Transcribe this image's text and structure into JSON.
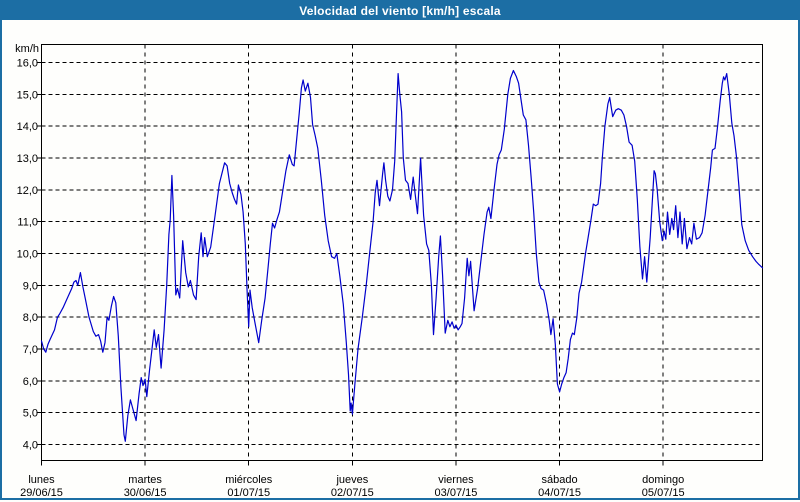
{
  "window": {
    "title": "Velocidad del viento [km/h] escala"
  },
  "colors": {
    "titlebar_bg": "#1C6EA4",
    "titlebar_text": "#FFFFFF",
    "window_border": "#1C6EA4",
    "plot_bg": "#FEFEFC",
    "grid": "#000000",
    "text": "#000000",
    "line": "#0000CC"
  },
  "chart_data": {
    "type": "line",
    "title": "Velocidad del viento [km/h] escala",
    "legend": "none",
    "grid": "dashed",
    "y_axis": {
      "unit_label": "km/h",
      "tick_values": [
        16,
        15,
        14,
        13,
        12,
        11,
        10,
        9,
        8,
        7,
        6,
        5,
        4
      ],
      "tick_labels": [
        "16,0",
        "15,0",
        "14,0",
        "13,0",
        "12,0",
        "11,0",
        "10,0",
        "9,0",
        "8,0",
        "7,0",
        "6,0",
        "5,0",
        "4,0"
      ],
      "range_shown": [
        4,
        16
      ]
    },
    "x_axis": {
      "days": [
        {
          "name": "lunes",
          "date": "29/06/15"
        },
        {
          "name": "martes",
          "date": "30/06/15"
        },
        {
          "name": "miércoles",
          "date": "01/07/15"
        },
        {
          "name": "jueves",
          "date": "02/07/15"
        },
        {
          "name": "viernes",
          "date": "03/07/15"
        },
        {
          "name": "sábado",
          "date": "04/07/15"
        },
        {
          "name": "domingo",
          "date": "05/07/15"
        }
      ],
      "hours_per_day": 24,
      "hours_shown": 167
    },
    "series": [
      {
        "name": "Velocidad del viento",
        "unit": "km/h",
        "color": "#0000CC",
        "points": [
          [
            0,
            7.25
          ],
          [
            0.5,
            7.0
          ],
          [
            1,
            6.9
          ],
          [
            1.5,
            7.15
          ],
          [
            2,
            7.3
          ],
          [
            3,
            7.6
          ],
          [
            3.7,
            8.0
          ],
          [
            4.2,
            8.1
          ],
          [
            5,
            8.3
          ],
          [
            6,
            8.6
          ],
          [
            7,
            8.9
          ],
          [
            7.5,
            9.1
          ],
          [
            8,
            9.15
          ],
          [
            8.4,
            9.0
          ],
          [
            9,
            9.4
          ],
          [
            9.6,
            8.95
          ],
          [
            10.2,
            8.55
          ],
          [
            11,
            8.0
          ],
          [
            12,
            7.55
          ],
          [
            12.6,
            7.4
          ],
          [
            13.2,
            7.45
          ],
          [
            13.7,
            7.25
          ],
          [
            14.2,
            6.9
          ],
          [
            14.7,
            7.2
          ],
          [
            15.2,
            8.0
          ],
          [
            15.6,
            7.9
          ],
          [
            16.2,
            8.35
          ],
          [
            16.7,
            8.65
          ],
          [
            17.2,
            8.45
          ],
          [
            17.8,
            7.4
          ],
          [
            18.4,
            5.8
          ],
          [
            19.1,
            4.3
          ],
          [
            19.4,
            4.1
          ],
          [
            20,
            4.9
          ],
          [
            20.6,
            5.4
          ],
          [
            21.2,
            5.1
          ],
          [
            21.9,
            4.75
          ],
          [
            22.6,
            5.6
          ],
          [
            23.1,
            6.1
          ],
          [
            23.5,
            5.85
          ],
          [
            24,
            6.05
          ],
          [
            24.4,
            5.5
          ],
          [
            25,
            6.3
          ],
          [
            25.6,
            7.0
          ],
          [
            26.1,
            7.6
          ],
          [
            26.6,
            7.05
          ],
          [
            27.1,
            7.45
          ],
          [
            27.7,
            6.4
          ],
          [
            28.4,
            7.6
          ],
          [
            29,
            9.0
          ],
          [
            29.5,
            10.6
          ],
          [
            29.8,
            11.05
          ],
          [
            30.2,
            12.45
          ],
          [
            30.6,
            11.2
          ],
          [
            31.1,
            8.7
          ],
          [
            31.5,
            8.9
          ],
          [
            32,
            8.6
          ],
          [
            32.7,
            10.4
          ],
          [
            33.4,
            9.4
          ],
          [
            34,
            8.95
          ],
          [
            34.5,
            9.15
          ],
          [
            35.2,
            8.7
          ],
          [
            35.8,
            8.55
          ],
          [
            36.4,
            9.9
          ],
          [
            37,
            10.65
          ],
          [
            37.4,
            9.9
          ],
          [
            37.8,
            10.5
          ],
          [
            38.4,
            9.9
          ],
          [
            39.2,
            10.2
          ],
          [
            40.2,
            11.2
          ],
          [
            41.2,
            12.2
          ],
          [
            42.4,
            12.85
          ],
          [
            43,
            12.75
          ],
          [
            43.6,
            12.2
          ],
          [
            44.2,
            11.9
          ],
          [
            44.7,
            11.7
          ],
          [
            45.2,
            11.55
          ],
          [
            45.6,
            12.15
          ],
          [
            46.2,
            11.85
          ],
          [
            46.7,
            11.3
          ],
          [
            47.2,
            10.3
          ],
          [
            47.6,
            8.9
          ],
          [
            48,
            7.7
          ],
          [
            48.3,
            8.85
          ],
          [
            48.8,
            8.3
          ],
          [
            49.4,
            7.85
          ],
          [
            50.3,
            7.2
          ],
          [
            51,
            7.9
          ],
          [
            51.8,
            8.6
          ],
          [
            52.5,
            9.6
          ],
          [
            53,
            10.3
          ],
          [
            53.5,
            10.95
          ],
          [
            54,
            10.8
          ],
          [
            54.5,
            11.05
          ],
          [
            55.1,
            11.3
          ],
          [
            55.8,
            11.9
          ],
          [
            56.6,
            12.6
          ],
          [
            57.4,
            13.1
          ],
          [
            58.1,
            12.8
          ],
          [
            58.5,
            12.75
          ],
          [
            59.1,
            13.6
          ],
          [
            59.7,
            14.4
          ],
          [
            60.2,
            15.2
          ],
          [
            60.6,
            15.45
          ],
          [
            61.1,
            15.1
          ],
          [
            61.7,
            15.35
          ],
          [
            62.3,
            14.9
          ],
          [
            62.8,
            14.05
          ],
          [
            63.4,
            13.7
          ],
          [
            64,
            13.3
          ],
          [
            64.8,
            12.3
          ],
          [
            65.6,
            11.2
          ],
          [
            66.4,
            10.4
          ],
          [
            67.2,
            9.9
          ],
          [
            67.9,
            9.85
          ],
          [
            68.4,
            10.0
          ],
          [
            69.1,
            9.3
          ],
          [
            69.9,
            8.4
          ],
          [
            70.6,
            7.2
          ],
          [
            71.1,
            6.2
          ],
          [
            71.5,
            5.05
          ],
          [
            71.7,
            5.3
          ],
          [
            72,
            4.95
          ],
          [
            72.6,
            5.9
          ],
          [
            73.3,
            7.0
          ],
          [
            74.3,
            8.0
          ],
          [
            75.2,
            9.0
          ],
          [
            76,
            10.0
          ],
          [
            76.8,
            11.0
          ],
          [
            77.3,
            11.9
          ],
          [
            77.7,
            12.3
          ],
          [
            78.3,
            11.5
          ],
          [
            79,
            12.5
          ],
          [
            79.3,
            12.85
          ],
          [
            79.7,
            12.3
          ],
          [
            80.2,
            11.8
          ],
          [
            80.7,
            11.65
          ],
          [
            81.3,
            12.0
          ],
          [
            81.8,
            12.9
          ],
          [
            82.2,
            14.3
          ],
          [
            82.6,
            15.65
          ],
          [
            83,
            15.0
          ],
          [
            83.4,
            14.45
          ],
          [
            83.8,
            13.0
          ],
          [
            84.3,
            12.3
          ],
          [
            84.9,
            12.2
          ],
          [
            85.5,
            11.7
          ],
          [
            86.1,
            12.4
          ],
          [
            86.7,
            11.7
          ],
          [
            87.1,
            11.25
          ],
          [
            87.8,
            13.0
          ],
          [
            88.5,
            11.2
          ],
          [
            89.2,
            10.3
          ],
          [
            89.7,
            10.1
          ],
          [
            90.3,
            9.0
          ],
          [
            90.8,
            7.45
          ],
          [
            91.4,
            8.6
          ],
          [
            92,
            9.9
          ],
          [
            92.4,
            10.55
          ],
          [
            92.9,
            9.3
          ],
          [
            93.5,
            7.5
          ],
          [
            94.1,
            7.9
          ],
          [
            94.6,
            7.7
          ],
          [
            95.1,
            7.85
          ],
          [
            95.6,
            7.65
          ],
          [
            96,
            7.75
          ],
          [
            96.5,
            7.6
          ],
          [
            97,
            7.7
          ],
          [
            97.4,
            7.8
          ],
          [
            98,
            8.6
          ],
          [
            98.6,
            9.85
          ],
          [
            99,
            9.3
          ],
          [
            99.4,
            9.75
          ],
          [
            100.2,
            8.2
          ],
          [
            101,
            8.9
          ],
          [
            101.8,
            9.8
          ],
          [
            102.5,
            10.6
          ],
          [
            103.2,
            11.3
          ],
          [
            103.6,
            11.45
          ],
          [
            104.1,
            11.1
          ],
          [
            104.8,
            12.0
          ],
          [
            105.5,
            12.8
          ],
          [
            106,
            13.1
          ],
          [
            106.5,
            13.25
          ],
          [
            107.2,
            13.9
          ],
          [
            108,
            15.0
          ],
          [
            108.6,
            15.5
          ],
          [
            109.3,
            15.75
          ],
          [
            110,
            15.55
          ],
          [
            110.5,
            15.35
          ],
          [
            111,
            14.9
          ],
          [
            111.6,
            14.35
          ],
          [
            112.2,
            14.2
          ],
          [
            112.8,
            13.4
          ],
          [
            113.4,
            12.4
          ],
          [
            114,
            11.3
          ],
          [
            114.6,
            10.0
          ],
          [
            115.2,
            9.1
          ],
          [
            115.7,
            8.9
          ],
          [
            116.3,
            8.85
          ],
          [
            117,
            8.4
          ],
          [
            117.6,
            7.9
          ],
          [
            118,
            7.45
          ],
          [
            118.5,
            7.95
          ],
          [
            119,
            7.15
          ],
          [
            119.5,
            5.9
          ],
          [
            120,
            5.65
          ],
          [
            120.5,
            5.9
          ],
          [
            121,
            6.1
          ],
          [
            121.5,
            6.25
          ],
          [
            122,
            6.7
          ],
          [
            122.5,
            7.3
          ],
          [
            123,
            7.5
          ],
          [
            123.4,
            7.45
          ],
          [
            124,
            8.0
          ],
          [
            124.5,
            8.75
          ],
          [
            125.1,
            9.1
          ],
          [
            126,
            10.0
          ],
          [
            126.6,
            10.5
          ],
          [
            127.2,
            11.0
          ],
          [
            127.8,
            11.55
          ],
          [
            128.4,
            11.5
          ],
          [
            128.9,
            11.55
          ],
          [
            129.5,
            12.2
          ],
          [
            129.9,
            13.0
          ],
          [
            130.5,
            14.0
          ],
          [
            131.2,
            14.7
          ],
          [
            131.6,
            14.9
          ],
          [
            132.3,
            14.3
          ],
          [
            133,
            14.5
          ],
          [
            133.6,
            14.55
          ],
          [
            134.3,
            14.5
          ],
          [
            134.9,
            14.35
          ],
          [
            135.5,
            14.0
          ],
          [
            136.1,
            13.5
          ],
          [
            136.8,
            13.4
          ],
          [
            137.4,
            12.9
          ],
          [
            138,
            11.7
          ],
          [
            138.6,
            10.2
          ],
          [
            139.2,
            9.2
          ],
          [
            139.7,
            9.9
          ],
          [
            140.2,
            9.1
          ],
          [
            141,
            10.5
          ],
          [
            141.9,
            12.6
          ],
          [
            142.2,
            12.5
          ],
          [
            142.6,
            12.0
          ],
          [
            143.2,
            11.0
          ],
          [
            143.8,
            10.4
          ],
          [
            144.2,
            10.7
          ],
          [
            144.6,
            10.45
          ],
          [
            145,
            11.3
          ],
          [
            145.5,
            10.6
          ],
          [
            146,
            11.1
          ],
          [
            146.4,
            10.75
          ],
          [
            146.9,
            11.5
          ],
          [
            147.4,
            10.5
          ],
          [
            147.9,
            11.3
          ],
          [
            148.4,
            10.3
          ],
          [
            148.9,
            11.1
          ],
          [
            149.5,
            10.15
          ],
          [
            150.1,
            10.5
          ],
          [
            150.6,
            10.3
          ],
          [
            151.1,
            10.95
          ],
          [
            151.7,
            10.45
          ],
          [
            152.4,
            10.5
          ],
          [
            153,
            10.65
          ],
          [
            153.7,
            11.2
          ],
          [
            154.3,
            11.9
          ],
          [
            155,
            12.7
          ],
          [
            155.4,
            13.25
          ],
          [
            156,
            13.3
          ],
          [
            156.6,
            14.0
          ],
          [
            157.2,
            14.8
          ],
          [
            157.7,
            15.35
          ],
          [
            158,
            15.55
          ],
          [
            158.3,
            15.45
          ],
          [
            158.7,
            15.65
          ],
          [
            159.3,
            15.0
          ],
          [
            159.9,
            14.1
          ],
          [
            160.4,
            13.7
          ],
          [
            161,
            13.0
          ],
          [
            161.6,
            12.0
          ],
          [
            162.2,
            10.9
          ],
          [
            163,
            10.4
          ],
          [
            163.8,
            10.1
          ],
          [
            164.7,
            9.9
          ],
          [
            165.5,
            9.75
          ],
          [
            166.2,
            9.65
          ],
          [
            167,
            9.55
          ]
        ]
      }
    ]
  }
}
